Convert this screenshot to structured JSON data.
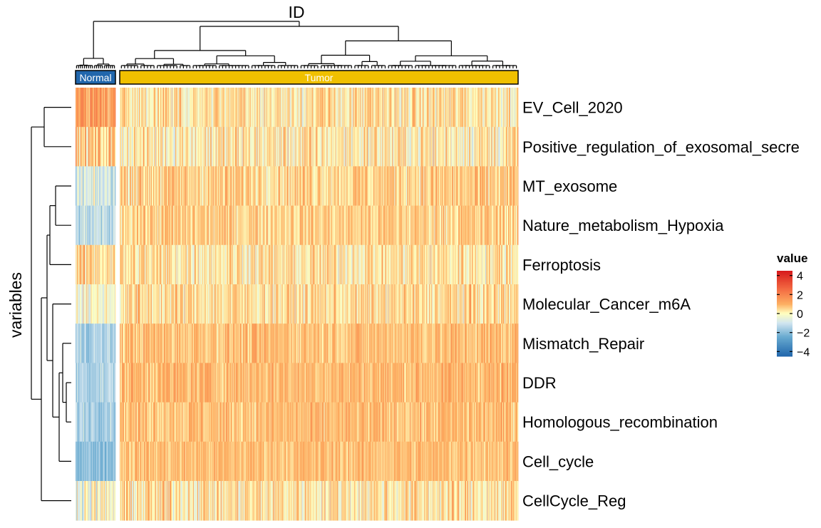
{
  "chart_data": {
    "type": "heatmap",
    "title": "ID",
    "xlabel": "",
    "ylabel": "variables",
    "groups": [
      {
        "label": "Normal",
        "color": "#2166ac",
        "n_columns": 60
      },
      {
        "label": "Tumor",
        "color": "#f0c000",
        "n_columns": 560
      }
    ],
    "rows": [
      {
        "label": "EV_Cell_2020",
        "normal_mean": 1.4,
        "tumor_mean": 0.3,
        "spread": 1.0
      },
      {
        "label": "Positive_regulation_of_exosomal_secre",
        "normal_mean": 0.6,
        "tumor_mean": 0.2,
        "spread": 1.1
      },
      {
        "label": "MT_exosome",
        "normal_mean": -0.9,
        "tumor_mean": 0.6,
        "spread": 0.9
      },
      {
        "label": "Nature_metabolism_Hypoxia",
        "normal_mean": -1.3,
        "tumor_mean": 0.6,
        "spread": 0.8
      },
      {
        "label": "Ferroptosis",
        "normal_mean": 0.5,
        "tumor_mean": 0.3,
        "spread": 1.0
      },
      {
        "label": "Molecular_Cancer_m6A",
        "normal_mean": -0.2,
        "tumor_mean": 0.4,
        "spread": 0.9
      },
      {
        "label": "Mismatch_Repair",
        "normal_mean": -1.5,
        "tumor_mean": 0.8,
        "spread": 0.7
      },
      {
        "label": "DDR",
        "normal_mean": -1.4,
        "tumor_mean": 0.9,
        "spread": 0.7
      },
      {
        "label": "Homologous_recombination",
        "normal_mean": -1.4,
        "tumor_mean": 0.8,
        "spread": 0.7
      },
      {
        "label": "Cell_cycle",
        "normal_mean": -1.9,
        "tumor_mean": 0.8,
        "spread": 0.6
      },
      {
        "label": "CellCycle_Reg",
        "normal_mean": -0.2,
        "tumor_mean": 0.3,
        "spread": 1.1
      }
    ],
    "value_range": [
      -4.5,
      4.5
    ],
    "legend": {
      "title": "value",
      "ticks": [
        4,
        2,
        0,
        -2,
        -4
      ],
      "tick_labels": [
        "4",
        "2",
        "0",
        "−2",
        "−4"
      ],
      "placement": "right",
      "colors": [
        "#2166ac",
        "#67a9cf",
        "#d1e5f0",
        "#ffffbf",
        "#fdae61",
        "#f46d43",
        "#d7191c"
      ]
    },
    "row_dendrogram": true,
    "column_dendrogram": true
  }
}
